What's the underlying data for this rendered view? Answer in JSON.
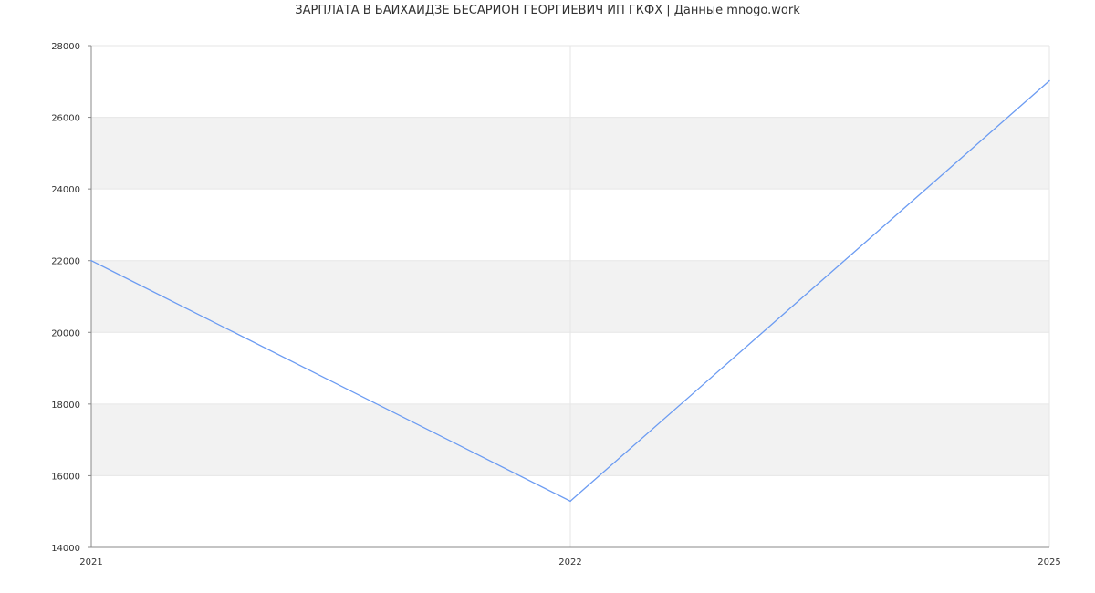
{
  "chart_data": {
    "type": "line",
    "title": "ЗАРПЛАТА В БАИХАИДЗЕ БЕСАРИОН ГЕОРГИЕВИЧ ИП ГКФХ | Данные mnogo.work",
    "xlabel": "",
    "ylabel": "",
    "categories": [
      "2021",
      "2022",
      "2025"
    ],
    "series": [
      {
        "values": [
          22000,
          15290,
          27020
        ],
        "color": "#6b9bf2"
      }
    ],
    "ylim": [
      14000,
      28000
    ],
    "yticks": [
      14000,
      16000,
      18000,
      20000,
      22000,
      24000,
      26000,
      28000
    ],
    "grid": true,
    "band_color": "#f2f2f2"
  }
}
